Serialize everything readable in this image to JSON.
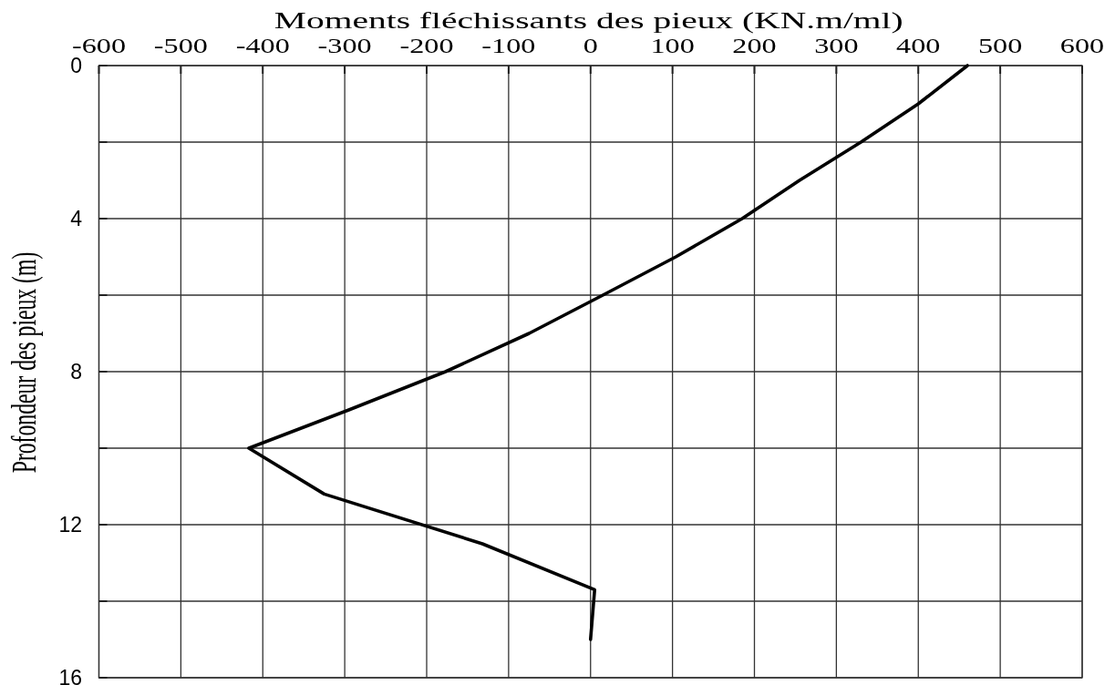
{
  "chart_data": {
    "type": "line",
    "xlabel": "Moments fléchissants des pieux (KN.m/ml)",
    "ylabel": "Profondeur des pieux (m)",
    "xlim": [
      -600,
      600
    ],
    "xticks": [
      -600,
      -500,
      -400,
      -300,
      -200,
      -100,
      0,
      100,
      200,
      300,
      400,
      500,
      600
    ],
    "ylim": [
      16,
      0
    ],
    "yticks": [
      0,
      {
        "value": 2,
        "label": null
      },
      4,
      {
        "value": 6,
        "label": null
      },
      8,
      {
        "value": 10,
        "label": null
      },
      12,
      {
        "value": 14,
        "label": null
      },
      16
    ],
    "grid": true,
    "series": [
      {
        "color": "#000000",
        "x": [
          460,
          400,
          330,
          255,
          185,
          104,
          15,
          -75,
          -177,
          -295,
          -417,
          -325,
          -132,
          5,
          0
        ],
        "values": [
          0,
          1,
          2,
          3,
          4,
          5,
          6,
          7,
          8,
          9,
          10,
          11.2,
          12.5,
          13.7,
          15
        ]
      }
    ]
  }
}
